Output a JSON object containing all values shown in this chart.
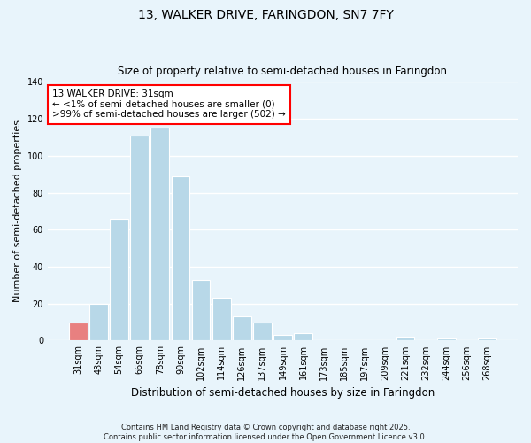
{
  "title": "13, WALKER DRIVE, FARINGDON, SN7 7FY",
  "subtitle": "Size of property relative to semi-detached houses in Faringdon",
  "xlabel": "Distribution of semi-detached houses by size in Faringdon",
  "ylabel": "Number of semi-detached properties",
  "bar_labels": [
    "31sqm",
    "43sqm",
    "54sqm",
    "66sqm",
    "78sqm",
    "90sqm",
    "102sqm",
    "114sqm",
    "126sqm",
    "137sqm",
    "149sqm",
    "161sqm",
    "173sqm",
    "185sqm",
    "197sqm",
    "209sqm",
    "221sqm",
    "232sqm",
    "244sqm",
    "256sqm",
    "268sqm"
  ],
  "bar_values": [
    10,
    20,
    66,
    111,
    115,
    89,
    33,
    23,
    13,
    10,
    3,
    4,
    0,
    0,
    0,
    0,
    2,
    0,
    1,
    0,
    1
  ],
  "highlight_index": 0,
  "bar_color": "#b8d8e8",
  "highlight_color": "#e88080",
  "ylim": [
    0,
    140
  ],
  "yticks": [
    0,
    20,
    40,
    60,
    80,
    100,
    120,
    140
  ],
  "annotation_title": "13 WALKER DRIVE: 31sqm",
  "annotation_line1": "← <1% of semi-detached houses are smaller (0)",
  "annotation_line2": ">99% of semi-detached houses are larger (502) →",
  "footer_line1": "Contains HM Land Registry data © Crown copyright and database right 2025.",
  "footer_line2": "Contains public sector information licensed under the Open Government Licence v3.0.",
  "background_color": "#e8f4fb"
}
